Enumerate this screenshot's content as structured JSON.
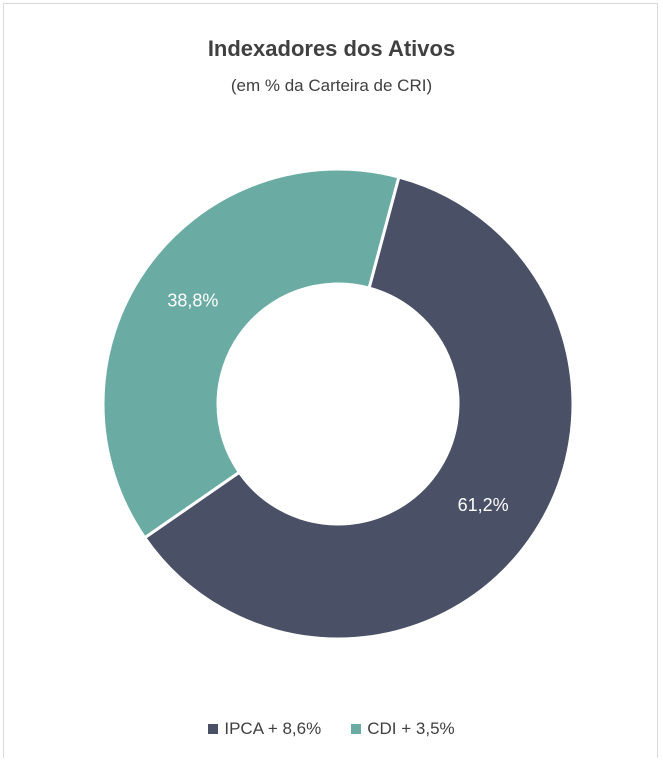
{
  "chart_data": {
    "type": "pie",
    "variant": "donut",
    "title": "Indexadores dos Ativos",
    "subtitle": "(em % da Carteira de CRI)",
    "slices": [
      {
        "name": "IPCA + 8,6%",
        "value": 61.2,
        "label": "61,2%",
        "color": "#4a5066"
      },
      {
        "name": "CDI + 3,5%",
        "value": 38.8,
        "label": "38,8%",
        "color": "#6aaca3"
      }
    ],
    "legend_position": "bottom"
  }
}
